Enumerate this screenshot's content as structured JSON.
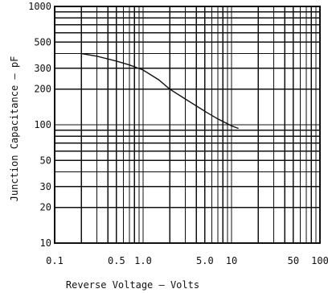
{
  "chart_data": {
    "type": "line",
    "title": "",
    "xlabel": "Reverse Voltage — Volts",
    "ylabel": "Junction Capacitance — pF",
    "xscale": "log",
    "yscale": "log",
    "xlim": [
      0.1,
      100
    ],
    "ylim": [
      10,
      1000
    ],
    "grid": true,
    "x_tick_labels": [
      {
        "value": 0.1,
        "label": "0.1"
      },
      {
        "value": 0.5,
        "label": "0.5"
      },
      {
        "value": 1,
        "label": "1.0"
      },
      {
        "value": 5,
        "label": "5.0"
      },
      {
        "value": 10,
        "label": "10"
      },
      {
        "value": 50,
        "label": "50"
      },
      {
        "value": 100,
        "label": "100"
      }
    ],
    "y_tick_labels": [
      {
        "value": 10,
        "label": "10"
      },
      {
        "value": 20,
        "label": "20"
      },
      {
        "value": 30,
        "label": "30"
      },
      {
        "value": 50,
        "label": "50"
      },
      {
        "value": 100,
        "label": "100"
      },
      {
        "value": 200,
        "label": "200"
      },
      {
        "value": 300,
        "label": "300"
      },
      {
        "value": 500,
        "label": "500"
      },
      {
        "value": 1000,
        "label": "1000"
      }
    ],
    "series": [
      {
        "x": [
          0.2,
          0.3,
          0.5,
          0.7,
          1.0,
          1.5,
          2.0,
          3.0,
          5.0,
          7.0,
          10.0,
          12.0
        ],
        "y": [
          400,
          380,
          345,
          320,
          290,
          240,
          200,
          165,
          130,
          112,
          98,
          93
        ]
      }
    ]
  }
}
